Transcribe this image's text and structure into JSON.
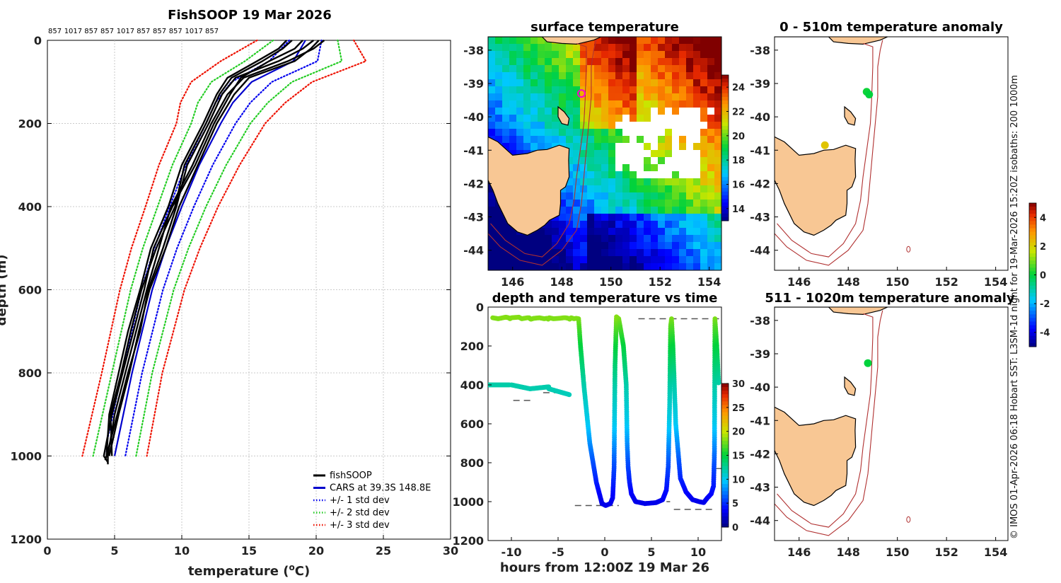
{
  "chart_data": [
    {
      "id": "profile",
      "type": "line",
      "title": "FishSOOP 19 Mar 2026",
      "drop_ids": [
        "857",
        "1017",
        "857",
        "857",
        "1017",
        "857",
        "857",
        "857",
        "1017",
        "857"
      ],
      "xlabel": "temperature (",
      "xlabel_sup": "o",
      "xlabel_end": "C)",
      "ylabel": "depth (m)",
      "xlim": [
        0,
        30
      ],
      "ylim": [
        0,
        1200
      ],
      "xticks": [
        "0",
        "5",
        "10",
        "15",
        "20",
        "25",
        "30"
      ],
      "yticks": [
        "0",
        "200",
        "400",
        "600",
        "800",
        "1000",
        "1200"
      ],
      "legend": [
        {
          "label": "fishSOOP",
          "color": "#000000",
          "style": "solid"
        },
        {
          "label": "CARS at 39.3S 148.8E",
          "color": "#0000cc",
          "style": "solid"
        },
        {
          "label": "+/- 1 std dev",
          "color": "#0000ee",
          "style": "dotted"
        },
        {
          "label": "+/- 2 std dev",
          "color": "#22cc22",
          "style": "dotted"
        },
        {
          "label": "+/- 3 std dev",
          "color": "#ee1100",
          "style": "dotted"
        }
      ],
      "cars_mean": {
        "depth": [
          0,
          50,
          100,
          150,
          200,
          300,
          400,
          500,
          600,
          800,
          1000
        ],
        "temp": [
          19.2,
          18.3,
          15.2,
          13.8,
          12.9,
          11.3,
          10.0,
          8.8,
          7.8,
          6.3,
          5.0
        ]
      },
      "std": {
        "depth": [
          0,
          50,
          100,
          150,
          200,
          300,
          400,
          500,
          600,
          800,
          1000
        ],
        "sd": [
          1.2,
          1.8,
          1.5,
          1.3,
          1.1,
          1.0,
          0.9,
          0.85,
          0.8,
          0.75,
          0.8
        ]
      },
      "fishsoop_profiles": [
        {
          "depth": [
            0,
            20,
            50,
            90,
            130,
            200,
            300,
            400,
            500,
            600,
            700,
            800,
            900,
            1000,
            1020
          ],
          "temp": [
            20.6,
            19.8,
            17.9,
            14.6,
            13.4,
            12.2,
            10.8,
            9.2,
            8.3,
            7.4,
            6.6,
            5.8,
            5.0,
            4.5,
            4.5
          ]
        },
        {
          "depth": [
            0,
            20,
            50,
            90,
            130,
            200,
            300,
            400,
            500,
            600,
            700,
            800,
            900,
            1000,
            1010
          ],
          "temp": [
            19.8,
            19.0,
            17.2,
            14.0,
            13.0,
            12.0,
            10.4,
            9.6,
            8.6,
            7.5,
            6.9,
            6.0,
            5.2,
            4.4,
            4.3
          ]
        },
        {
          "depth": [
            0,
            20,
            50,
            90,
            130,
            200,
            300,
            400,
            500,
            600,
            700,
            800,
            900,
            1000,
            1015
          ],
          "temp": [
            19.0,
            18.4,
            16.5,
            14.4,
            13.6,
            12.4,
            11.0,
            9.3,
            7.9,
            7.2,
            6.4,
            5.6,
            4.8,
            4.2,
            4.5
          ]
        },
        {
          "depth": [
            0,
            20,
            50,
            90,
            130,
            200,
            300,
            400,
            500,
            600,
            700,
            800,
            900,
            1000
          ],
          "temp": [
            18.2,
            17.5,
            16.0,
            13.7,
            12.8,
            11.8,
            10.2,
            9.5,
            8.1,
            7.0,
            6.2,
            5.5,
            4.7,
            4.8
          ]
        },
        {
          "depth": [
            0,
            20,
            50,
            90,
            130,
            200,
            300,
            400,
            500,
            600,
            700,
            800,
            900,
            1000
          ],
          "temp": [
            20.2,
            19.6,
            18.4,
            15.0,
            13.9,
            12.6,
            11.2,
            9.8,
            8.8,
            7.6,
            6.8,
            6.1,
            5.3,
            4.6
          ]
        },
        {
          "depth": [
            0,
            20,
            50,
            90,
            130,
            200,
            300,
            400,
            500,
            600,
            700,
            800,
            900,
            1000
          ],
          "temp": [
            17.8,
            17.2,
            15.6,
            13.4,
            12.6,
            11.6,
            10.0,
            9.0,
            7.7,
            6.9,
            6.0,
            5.3,
            4.6,
            4.4
          ]
        }
      ]
    },
    {
      "id": "sst_map",
      "type": "heatmap",
      "title": "surface temperature",
      "xticks": [
        "146",
        "148",
        "150",
        "152",
        "154"
      ],
      "yticks": [
        "-38",
        "-39",
        "-40",
        "-41",
        "-42",
        "-43",
        "-44"
      ],
      "xlim": [
        145,
        154.5
      ],
      "ylim": [
        -44.6,
        -37.6
      ],
      "colorbar_ticks": [
        "14",
        "16",
        "18",
        "20",
        "22",
        "24"
      ],
      "colorbar_range": [
        13,
        25
      ],
      "marker": {
        "lon": 148.8,
        "lat": -39.3,
        "color": "#ff00cc"
      }
    },
    {
      "id": "depth_time",
      "type": "scatter",
      "title": "depth and temperature vs time",
      "xlabel": "hours from 12:00Z 19 Mar 26",
      "xticks": [
        "-10",
        "-5",
        "0",
        "5",
        "10"
      ],
      "yticks": [
        "0",
        "200",
        "400",
        "600",
        "800",
        "1000",
        "1200"
      ],
      "xlim": [
        -12.5,
        12.5
      ],
      "ylim": [
        0,
        1200
      ],
      "colorbar_ticks": [
        "0",
        "5",
        "10",
        "15",
        "20",
        "25",
        "30"
      ],
      "colorbar_range": [
        0,
        30
      ],
      "track": {
        "t": [
          -12,
          -11.4,
          -10.9,
          -10.6,
          -10.3,
          -10.15,
          -10,
          -9.2,
          -8.9,
          -8.3,
          -8.1,
          -8.0,
          -7.9,
          -7.6,
          -7,
          -6.5,
          -6.2,
          -6.05,
          -5.95,
          -5.5,
          -4.9,
          -4.4,
          -4.2,
          -3.9,
          -3.75,
          -3.6,
          -3.3,
          -3.05,
          -2.8,
          -2.6,
          -2.2,
          -1.6,
          -0.9,
          -0.3,
          0.1,
          0.6,
          0.85,
          1.0,
          1.1,
          1.25,
          1.5,
          2.0,
          2.3,
          2.4,
          2.5,
          2.65,
          2.85,
          3.3,
          4.3,
          5.5,
          6.2,
          6.6,
          6.8,
          6.95,
          7.05,
          7.15,
          7.3,
          7.6,
          8.1,
          8.7,
          9.4,
          10.1,
          10.6,
          11.0,
          11.4,
          11.65,
          11.75,
          11.8,
          12.0,
          12.2
        ],
        "d": [
          55,
          60,
          55,
          52,
          55,
          60,
          55,
          52,
          60,
          55,
          55,
          60,
          62,
          58,
          55,
          60,
          58,
          62,
          55,
          60,
          58,
          55,
          55,
          58,
          62,
          55,
          60,
          58,
          60,
          200,
          420,
          700,
          900,
          1010,
          1020,
          1010,
          980,
          820,
          300,
          50,
          60,
          200,
          400,
          700,
          820,
          900,
          960,
          1000,
          1010,
          1005,
          990,
          940,
          820,
          500,
          100,
          60,
          200,
          600,
          880,
          950,
          990,
          1000,
          1005,
          980,
          960,
          920,
          740,
          60,
          200,
          400
        ],
        "temp_at_depth": {
          "depth": [
            0,
            100,
            200,
            400,
            600,
            800,
            1000
          ],
          "temp": [
            19.5,
            17,
            15,
            12,
            10,
            6,
            3
          ]
        }
      },
      "segments": [
        {
          "t": [
            -12.5,
            -10.2
          ],
          "d": [
            400,
            400
          ]
        },
        {
          "t": [
            -10,
            -8
          ],
          "d": [
            400,
            420
          ]
        },
        {
          "t": [
            -8,
            -6
          ],
          "d": [
            420,
            410
          ]
        },
        {
          "t": [
            -6,
            -3.8
          ],
          "d": [
            420,
            450
          ]
        }
      ],
      "reference_dashes": [
        {
          "t0": -12.3,
          "t1": -10.6,
          "d": 400
        },
        {
          "t0": -9.8,
          "t1": -7.7,
          "d": 480
        },
        {
          "t0": -6.6,
          "t1": -4.6,
          "d": 440
        },
        {
          "t0": -11.5,
          "t1": -3.4,
          "d": 55
        },
        {
          "t0": -3.2,
          "t1": 1.5,
          "d": 1020
        },
        {
          "t0": 3.6,
          "t1": 12.4,
          "d": 60
        },
        {
          "t0": 3.2,
          "t1": 7.0,
          "d": 1000
        },
        {
          "t0": 7.4,
          "t1": 11.8,
          "d": 1040
        },
        {
          "t0": 11.9,
          "t1": 12.6,
          "d": 830
        }
      ]
    },
    {
      "id": "anom_upper",
      "type": "scatter",
      "title": "0 - 510m temperature anomaly",
      "xticks": [
        "146",
        "148",
        "150",
        "152",
        "154"
      ],
      "yticks": [
        "-38",
        "-39",
        "-40",
        "-41",
        "-42",
        "-43",
        "-44"
      ],
      "points": [
        {
          "lon": 148.75,
          "lat": -39.25,
          "anomaly": 0.1
        },
        {
          "lon": 148.85,
          "lat": -39.33,
          "anomaly": 0.0
        },
        {
          "lon": 147.05,
          "lat": -40.85,
          "anomaly": 2.2
        }
      ]
    },
    {
      "id": "anom_lower",
      "type": "scatter",
      "title": "511 - 1020m temperature anomaly",
      "xticks": [
        "146",
        "148",
        "150",
        "152",
        "154"
      ],
      "yticks": [
        "-38",
        "-39",
        "-40",
        "-41",
        "-42",
        "-43",
        "-44"
      ],
      "points": [
        {
          "lon": 148.8,
          "lat": -39.28,
          "anomaly": 0.0
        }
      ]
    }
  ],
  "anomaly_colorbar": {
    "ticks": [
      "4",
      "2",
      "0",
      "-2",
      "-4"
    ],
    "range": [
      -5,
      5
    ]
  },
  "side_caption": "© IMOS 01-Apr-2026 06:18 Hobart SST: L3SM-1d night for 19-Mar-2026 15:20Z isobaths: 200  1000m",
  "colors": {
    "land": "#f8c794",
    "coast": "#000000",
    "isobath": "#b03030"
  }
}
